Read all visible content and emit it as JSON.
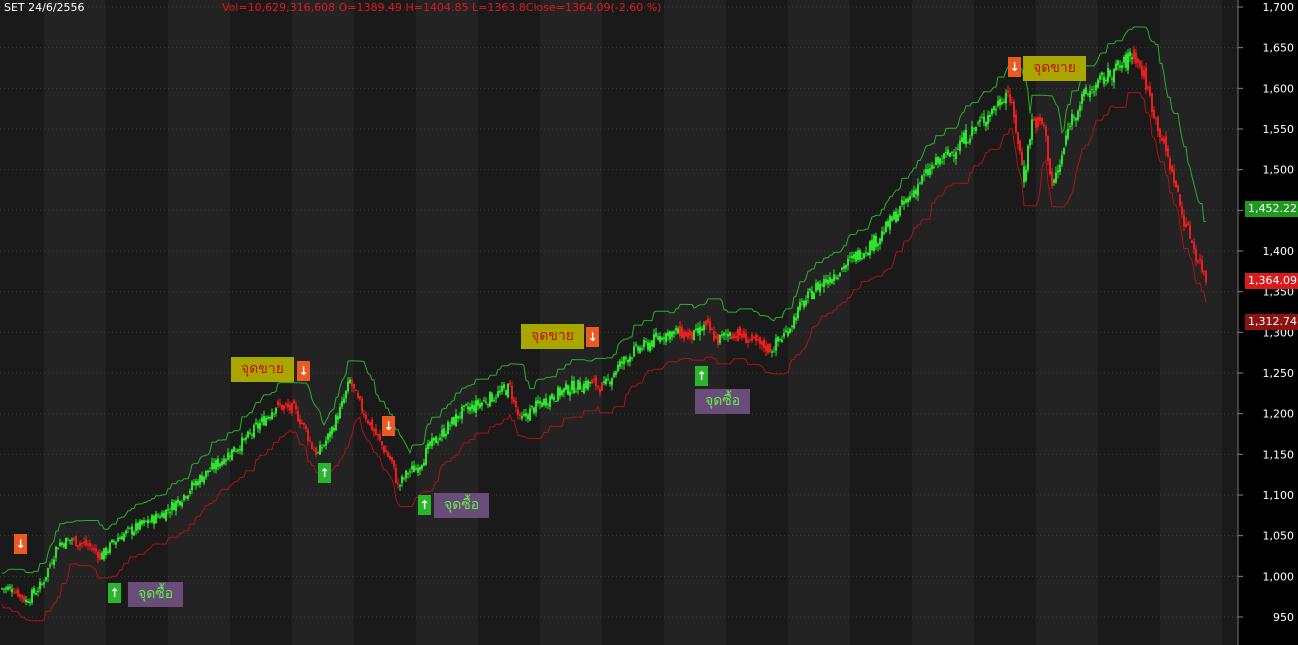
{
  "header": {
    "symbol_date": "SET 24/6/2556",
    "ohlc_text": "Vol=10,629,316,608  O=1389.49 H=1404.85 L=1363.8Close=1364.09(-2.60 %)"
  },
  "colors": {
    "up": "#2ce52c",
    "down": "#ee1d1d",
    "upper_band": "#26b226",
    "lower_band": "#aa1414",
    "background": "#000000",
    "band_a": "#1a1a1a",
    "band_b": "#232323",
    "axis_text": "#ffffff"
  },
  "signals": {
    "sell_text": "จุดขาย",
    "buy_text": "จุดซื้อ",
    "arrow_sell": "↓",
    "arrow_buy": "↑"
  },
  "price_tags": {
    "upper": "1,452.22",
    "last": "1,364.09",
    "lower": "1,312.74"
  },
  "chart_data": {
    "type": "candlestick",
    "title": "SET 24/6/2556",
    "ylim": [
      940,
      1700
    ],
    "y_ticks": [
      950,
      1000,
      1050,
      1100,
      1150,
      1200,
      1250,
      1300,
      1350,
      1400,
      1450,
      1500,
      1550,
      1600,
      1650,
      1700
    ],
    "y_tick_labels": [
      "950",
      "1,000",
      "1,050",
      "1,100",
      "1,150",
      "1,200",
      "1,250",
      "1,300",
      "1,350",
      "1,400",
      "1,450",
      "1,500",
      "1,550",
      "1,600",
      "1,650",
      "1,700"
    ],
    "last_close": 1364.09,
    "upper_band_last": 1452.22,
    "lower_band_last": 1312.74,
    "close_path": [
      [
        0,
        985
      ],
      [
        14,
        985
      ],
      [
        26,
        970
      ],
      [
        42,
        990
      ],
      [
        58,
        1040
      ],
      [
        72,
        1045
      ],
      [
        88,
        1038
      ],
      [
        102,
        1025
      ],
      [
        118,
        1048
      ],
      [
        134,
        1058
      ],
      [
        150,
        1068
      ],
      [
        166,
        1080
      ],
      [
        180,
        1095
      ],
      [
        198,
        1118
      ],
      [
        214,
        1135
      ],
      [
        230,
        1152
      ],
      [
        246,
        1168
      ],
      [
        262,
        1190
      ],
      [
        276,
        1210
      ],
      [
        294,
        1205
      ],
      [
        304,
        1185
      ],
      [
        312,
        1160
      ],
      [
        318,
        1150
      ],
      [
        330,
        1175
      ],
      [
        342,
        1210
      ],
      [
        350,
        1240
      ],
      [
        358,
        1215
      ],
      [
        370,
        1188
      ],
      [
        380,
        1165
      ],
      [
        392,
        1140
      ],
      [
        398,
        1110
      ],
      [
        408,
        1128
      ],
      [
        418,
        1135
      ],
      [
        430,
        1160
      ],
      [
        444,
        1178
      ],
      [
        460,
        1200
      ],
      [
        476,
        1210
      ],
      [
        494,
        1222
      ],
      [
        510,
        1232
      ],
      [
        520,
        1190
      ],
      [
        532,
        1205
      ],
      [
        550,
        1220
      ],
      [
        570,
        1232
      ],
      [
        592,
        1238
      ],
      [
        604,
        1232
      ],
      [
        616,
        1255
      ],
      [
        632,
        1275
      ],
      [
        648,
        1285
      ],
      [
        664,
        1298
      ],
      [
        680,
        1300
      ],
      [
        694,
        1295
      ],
      [
        706,
        1308
      ],
      [
        718,
        1290
      ],
      [
        730,
        1300
      ],
      [
        744,
        1295
      ],
      [
        758,
        1285
      ],
      [
        772,
        1280
      ],
      [
        786,
        1300
      ],
      [
        800,
        1330
      ],
      [
        816,
        1355
      ],
      [
        832,
        1370
      ],
      [
        848,
        1385
      ],
      [
        862,
        1400
      ],
      [
        878,
        1415
      ],
      [
        892,
        1438
      ],
      [
        906,
        1460
      ],
      [
        920,
        1485
      ],
      [
        934,
        1505
      ],
      [
        948,
        1518
      ],
      [
        962,
        1535
      ],
      [
        978,
        1555
      ],
      [
        994,
        1575
      ],
      [
        1008,
        1598
      ],
      [
        1016,
        1550
      ],
      [
        1024,
        1490
      ],
      [
        1032,
        1560
      ],
      [
        1044,
        1555
      ],
      [
        1052,
        1480
      ],
      [
        1060,
        1505
      ],
      [
        1070,
        1560
      ],
      [
        1084,
        1590
      ],
      [
        1098,
        1605
      ],
      [
        1110,
        1618
      ],
      [
        1124,
        1630
      ],
      [
        1134,
        1645
      ],
      [
        1144,
        1615
      ],
      [
        1154,
        1570
      ],
      [
        1164,
        1530
      ],
      [
        1174,
        1490
      ],
      [
        1182,
        1445
      ],
      [
        1190,
        1420
      ],
      [
        1196,
        1395
      ],
      [
        1202,
        1380
      ],
      [
        1206,
        1364
      ]
    ],
    "sell_signals": [
      1015,
      1220,
      1185,
      1245,
      1610
    ],
    "buy_signals": [
      972,
      1145,
      1092,
      1252
    ]
  }
}
